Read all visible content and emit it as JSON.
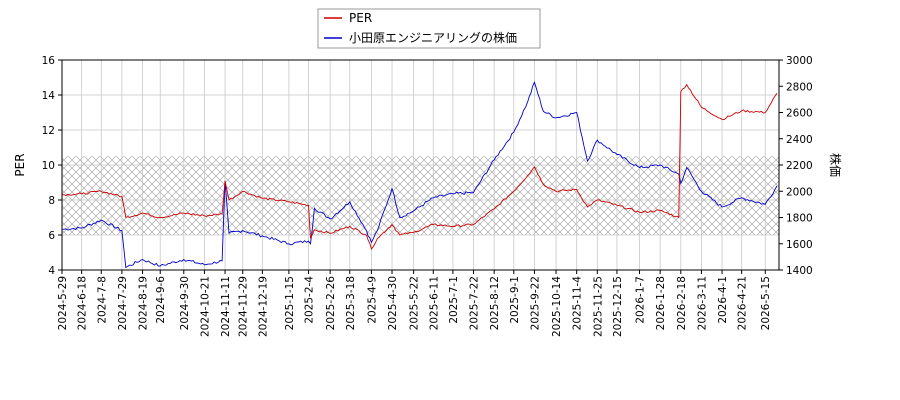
{
  "chart_data": {
    "type": "line",
    "legend": {
      "placement": "top-center",
      "entries": [
        {
          "label": "PER",
          "color": "#cc0000"
        },
        {
          "label": "小田原エンジニアリングの株価",
          "color": "#0000cc"
        }
      ]
    },
    "ylabel_left": "PER",
    "ylabel_right": "株価",
    "ylim_left": [
      4,
      16
    ],
    "ylim_right": [
      1400,
      3000
    ],
    "yticks_left": [
      "4",
      "6",
      "8",
      "10",
      "12",
      "14",
      "16"
    ],
    "yticks_right": [
      "1400",
      "1600",
      "1800",
      "2000",
      "2200",
      "2400",
      "2600",
      "2800",
      "3000"
    ],
    "band_left": [
      6,
      10.5
    ],
    "grid": true,
    "x_dates": [
      "2024-5-29",
      "2024-6-18",
      "2024-7-8",
      "2024-7-29",
      "2024-8-19",
      "2024-9-6",
      "2024-9-30",
      "2024-10-21",
      "2024-11-11",
      "2024-11-29",
      "2024-12-19",
      "2025-1-15",
      "2025-2-4",
      "2025-2-26",
      "2025-3-18",
      "2025-4-9",
      "2025-4-30",
      "2025-5-22",
      "2025-6-11",
      "2025-7-1",
      "2025-7-22",
      "2025-8-12",
      "2025-9-1",
      "2025-9-22",
      "2025-10-14",
      "2025-11-4",
      "2025-11-25",
      "2025-12-15",
      "2026-1-7",
      "2026-1-28",
      "2026-2-18",
      "2026-3-11",
      "2026-4-1",
      "2026-4-21",
      "2026-5-15"
    ],
    "series": [
      {
        "name": "PER",
        "axis": "left",
        "color": "#cc0000",
        "points": [
          [
            "2024-5-29",
            8.3
          ],
          [
            "2024-6-18",
            8.35
          ],
          [
            "2024-7-8",
            8.5
          ],
          [
            "2024-7-29",
            8.2
          ],
          [
            "2024-8-2",
            7.0
          ],
          [
            "2024-8-19",
            7.25
          ],
          [
            "2024-9-6",
            7.0
          ],
          [
            "2024-9-30",
            7.25
          ],
          [
            "2024-10-21",
            7.1
          ],
          [
            "2024-11-8",
            7.2
          ],
          [
            "2024-11-11",
            9.1
          ],
          [
            "2024-11-15",
            8.0
          ],
          [
            "2024-11-29",
            8.5
          ],
          [
            "2024-12-19",
            8.1
          ],
          [
            "2025-1-15",
            7.9
          ],
          [
            "2025-2-4",
            7.7
          ],
          [
            "2025-2-6",
            5.8
          ],
          [
            "2025-2-10",
            6.3
          ],
          [
            "2025-2-26",
            6.1
          ],
          [
            "2025-3-18",
            6.5
          ],
          [
            "2025-4-4",
            6.0
          ],
          [
            "2025-4-9",
            5.2
          ],
          [
            "2025-4-15",
            5.8
          ],
          [
            "2025-4-30",
            6.6
          ],
          [
            "2025-5-8",
            6.0
          ],
          [
            "2025-5-22",
            6.15
          ],
          [
            "2025-6-11",
            6.6
          ],
          [
            "2025-7-1",
            6.5
          ],
          [
            "2025-7-22",
            6.6
          ],
          [
            "2025-8-12",
            7.5
          ],
          [
            "2025-9-1",
            8.5
          ],
          [
            "2025-9-15",
            9.4
          ],
          [
            "2025-9-22",
            9.9
          ],
          [
            "2025-10-1",
            8.9
          ],
          [
            "2025-10-14",
            8.5
          ],
          [
            "2025-11-4",
            8.6
          ],
          [
            "2025-11-15",
            7.6
          ],
          [
            "2025-11-25",
            8.0
          ],
          [
            "2025-12-15",
            7.7
          ],
          [
            "2026-1-7",
            7.3
          ],
          [
            "2026-1-28",
            7.4
          ],
          [
            "2026-2-16",
            7.0
          ],
          [
            "2026-2-18",
            14.2
          ],
          [
            "2026-2-24",
            14.6
          ],
          [
            "2026-3-11",
            13.3
          ],
          [
            "2026-4-1",
            12.6
          ],
          [
            "2026-4-21",
            13.1
          ],
          [
            "2026-5-15",
            13.0
          ],
          [
            "2026-5-27",
            14.1
          ]
        ]
      },
      {
        "name": "小田原エンジニアリングの株価",
        "axis": "right",
        "color": "#0000cc",
        "points": [
          [
            "2024-5-29",
            1710
          ],
          [
            "2024-6-18",
            1720
          ],
          [
            "2024-7-8",
            1780
          ],
          [
            "2024-7-29",
            1700
          ],
          [
            "2024-8-2",
            1420
          ],
          [
            "2024-8-19",
            1480
          ],
          [
            "2024-9-6",
            1430
          ],
          [
            "2024-9-30",
            1480
          ],
          [
            "2024-10-21",
            1440
          ],
          [
            "2024-11-8",
            1470
          ],
          [
            "2024-11-11",
            2080
          ],
          [
            "2024-11-15",
            1680
          ],
          [
            "2024-11-29",
            1700
          ],
          [
            "2024-12-19",
            1660
          ],
          [
            "2025-1-15",
            1600
          ],
          [
            "2025-2-4",
            1620
          ],
          [
            "2025-2-6",
            1600
          ],
          [
            "2025-2-10",
            1870
          ],
          [
            "2025-2-26",
            1790
          ],
          [
            "2025-3-18",
            1920
          ],
          [
            "2025-4-4",
            1700
          ],
          [
            "2025-4-9",
            1610
          ],
          [
            "2025-4-15",
            1700
          ],
          [
            "2025-4-30",
            2020
          ],
          [
            "2025-5-8",
            1800
          ],
          [
            "2025-5-22",
            1850
          ],
          [
            "2025-6-11",
            1950
          ],
          [
            "2025-7-1",
            1980
          ],
          [
            "2025-7-22",
            1990
          ],
          [
            "2025-8-12",
            2240
          ],
          [
            "2025-9-1",
            2450
          ],
          [
            "2025-9-15",
            2680
          ],
          [
            "2025-9-22",
            2830
          ],
          [
            "2025-10-1",
            2610
          ],
          [
            "2025-10-14",
            2560
          ],
          [
            "2025-11-4",
            2600
          ],
          [
            "2025-11-15",
            2230
          ],
          [
            "2025-11-25",
            2390
          ],
          [
            "2025-12-15",
            2280
          ],
          [
            "2026-1-7",
            2180
          ],
          [
            "2026-1-28",
            2200
          ],
          [
            "2026-2-16",
            2130
          ],
          [
            "2026-2-18",
            2060
          ],
          [
            "2026-2-24",
            2180
          ],
          [
            "2026-3-11",
            2000
          ],
          [
            "2026-4-1",
            1880
          ],
          [
            "2026-4-21",
            1950
          ],
          [
            "2026-5-15",
            1900
          ],
          [
            "2026-5-27",
            2040
          ]
        ]
      }
    ]
  }
}
